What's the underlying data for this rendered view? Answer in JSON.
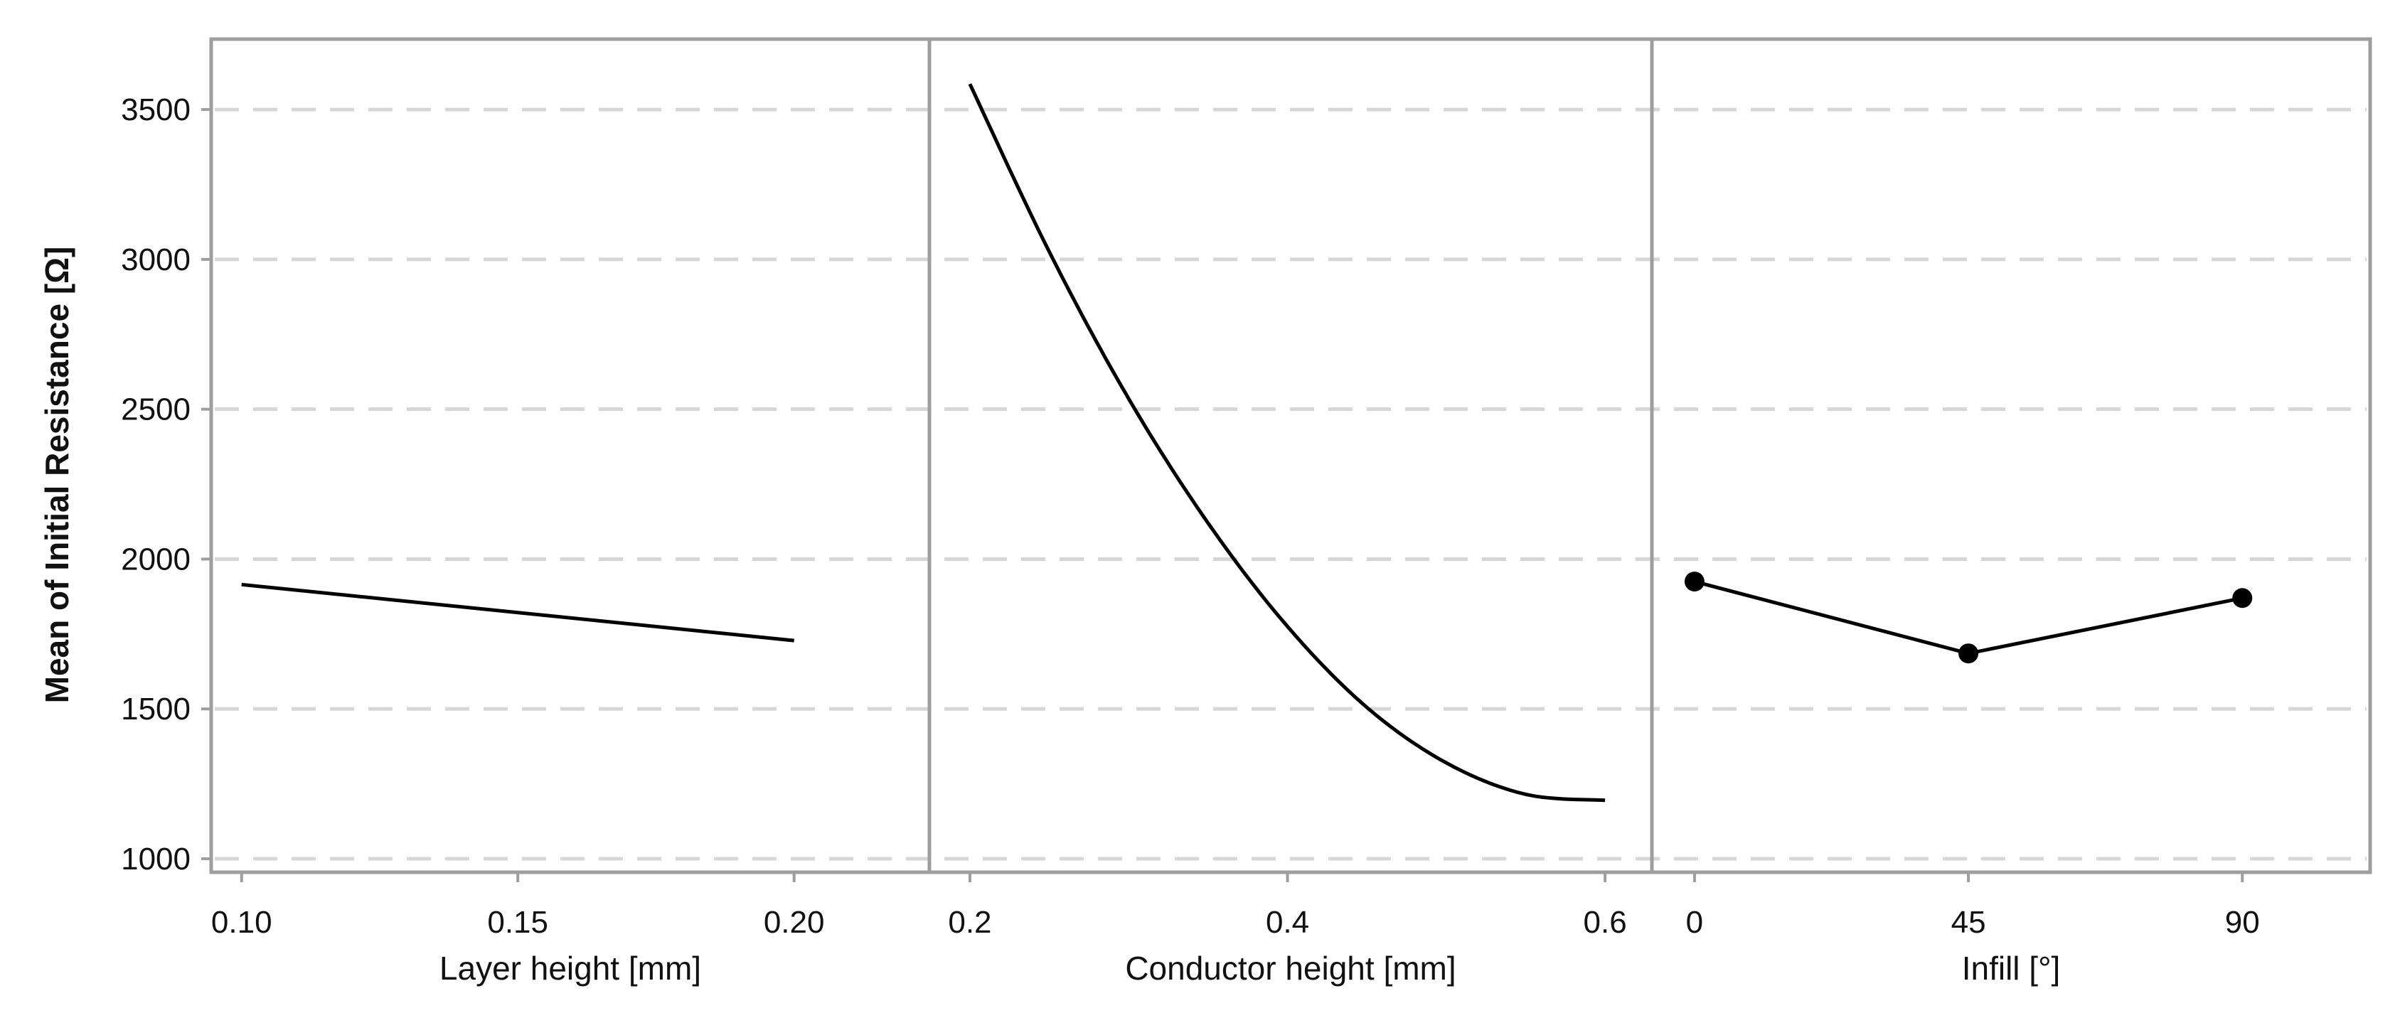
{
  "chart_data": {
    "type": "line",
    "title": "",
    "ylabel": "Mean of Initial Resistance [Ω]",
    "ylim": [
      955,
      3735
    ],
    "yticks": [
      1000,
      1500,
      2000,
      2500,
      3000,
      3500
    ],
    "ytick_labels": [
      "1000",
      "1500",
      "2000",
      "2500",
      "3000",
      "3500"
    ],
    "grid": "horizontal dashed",
    "panels": [
      {
        "name": "layer-height",
        "xlabel": "Layer height [mm]",
        "xlim": [
          0.0945,
          0.2245
        ],
        "xticks": [
          0.1,
          0.15,
          0.2
        ],
        "xtick_labels": [
          "0.10",
          "0.15",
          "0.20"
        ],
        "markers": false,
        "x": [
          0.1,
          0.2
        ],
        "y": [
          1915,
          1728
        ]
      },
      {
        "name": "conductor-height",
        "xlabel": "Conductor height [mm]",
        "xlim": [
          0.1745,
          0.6295
        ],
        "xticks": [
          0.2,
          0.4,
          0.6
        ],
        "xtick_labels": [
          "0.2",
          "0.4",
          "0.6"
        ],
        "markers": false,
        "x": [
          0.2,
          0.25,
          0.3,
          0.35,
          0.4,
          0.45,
          0.5,
          0.55,
          0.6
        ],
        "y": [
          3585,
          3025,
          2535,
          2120,
          1775,
          1505,
          1320,
          1215,
          1195
        ]
      },
      {
        "name": "infill",
        "xlabel": "Infill [°]",
        "xlim": [
          -7,
          111
        ],
        "xticks": [
          0,
          45,
          90
        ],
        "xtick_labels": [
          "0",
          "45",
          "90"
        ],
        "markers": true,
        "x": [
          0,
          45,
          90
        ],
        "y": [
          1925,
          1685,
          1870
        ]
      }
    ]
  }
}
